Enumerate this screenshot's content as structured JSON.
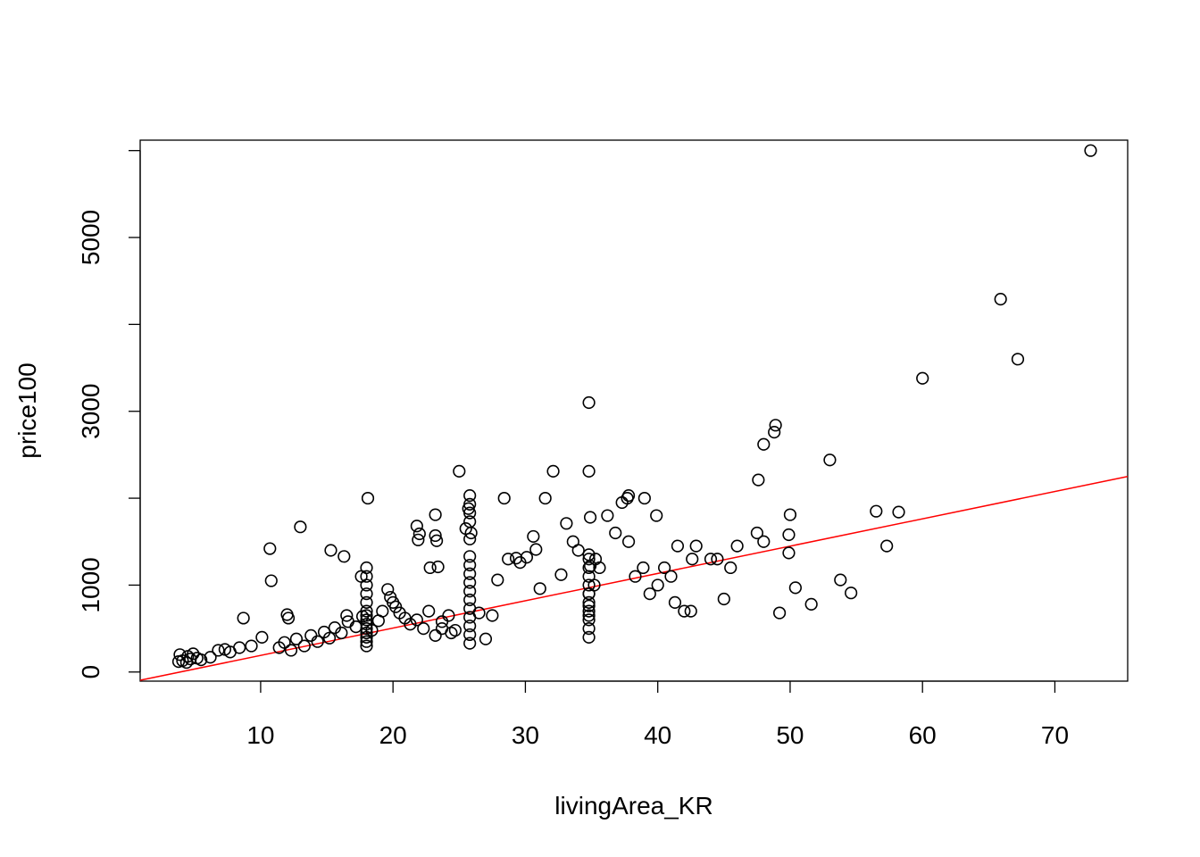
{
  "chart_data": {
    "type": "scatter",
    "title": "",
    "xlabel": "livingArea_KR",
    "ylabel": "price100",
    "xlim": [
      0.9,
      75.5
    ],
    "ylim": [
      -105,
      6120
    ],
    "xticks": [
      10,
      20,
      30,
      40,
      50,
      60,
      70
    ],
    "xtick_labels": [
      "10",
      "20",
      "30",
      "40",
      "50",
      "60",
      "70"
    ],
    "yticks": [
      0,
      1000,
      3000,
      5000
    ],
    "ytick_labels": [
      "0",
      "1000",
      "3000",
      "5000"
    ],
    "grid": false,
    "marker": "open-circle",
    "point_color": "#000000",
    "fit_line": {
      "color": "#ff0000",
      "x": [
        0.9,
        75.5
      ],
      "y": [
        -95,
        2250
      ]
    },
    "x": [
      3.8,
      4.1,
      4.4,
      4.7,
      3.9,
      4.5,
      4.9,
      5.2,
      5.5,
      6.2,
      6.8,
      7.3,
      7.7,
      8.4,
      8.7,
      9.3,
      10.1,
      10.7,
      10.8,
      12.0,
      12.1,
      13.0,
      15.3,
      16.3,
      16.5,
      17.6,
      18.1,
      11.4,
      11.8,
      12.3,
      12.7,
      13.3,
      13.8,
      14.3,
      14.8,
      15.2,
      15.6,
      16.1,
      16.6,
      17.2,
      17.7,
      18.0,
      18.0,
      18.0,
      18.0,
      18.0,
      18.0,
      18.0,
      18.0,
      18.0,
      18.0,
      18.0,
      18.0,
      18.0,
      18.0,
      18.4,
      18.9,
      19.2,
      19.6,
      19.8,
      20.0,
      20.2,
      20.5,
      20.9,
      21.3,
      21.8,
      22.3,
      22.7,
      23.2,
      23.7,
      24.2,
      24.7,
      25.8,
      25.8,
      25.8,
      25.8,
      25.8,
      25.8,
      25.8,
      25.8,
      25.8,
      25.8,
      25.8,
      25.8,
      25.8,
      25.8,
      25.8,
      25.8,
      21.8,
      21.9,
      22.0,
      22.8,
      23.2,
      23.2,
      23.3,
      23.4,
      23.7,
      24.4,
      25.0,
      25.5,
      25.7,
      25.9,
      26.5,
      27.0,
      27.5,
      27.9,
      28.4,
      28.7,
      29.3,
      29.6,
      30.1,
      30.6,
      30.8,
      31.1,
      31.5,
      32.1,
      32.7,
      33.1,
      33.6,
      34.0,
      34.8,
      34.8,
      34.8,
      34.8,
      34.8,
      34.8,
      34.8,
      34.8,
      34.8,
      34.8,
      34.8,
      34.8,
      34.8,
      34.8,
      34.8,
      34.8,
      34.9,
      34.9,
      35.3,
      35.2,
      35.6,
      36.2,
      36.8,
      37.3,
      37.8,
      38.3,
      38.9,
      39.4,
      39.9,
      40.5,
      41.0,
      41.5,
      42.0,
      42.6,
      37.7,
      37.8,
      39.0,
      40.0,
      41.3,
      42.5,
      42.9,
      44.0,
      44.5,
      45.5,
      46.0,
      47.5,
      48.0,
      47.6,
      48.0,
      48.8,
      48.9,
      49.9,
      49.9,
      50.0,
      45.0,
      49.2,
      50.4,
      51.6,
      53.0,
      53.8,
      54.6,
      56.5,
      57.3,
      58.2,
      60.0,
      65.9,
      67.2,
      72.7
    ],
    "y": [
      120,
      130,
      110,
      150,
      200,
      180,
      210,
      160,
      140,
      170,
      250,
      260,
      230,
      280,
      620,
      300,
      400,
      1420,
      1050,
      660,
      620,
      1670,
      1400,
      1330,
      650,
      1100,
      2000,
      280,
      340,
      250,
      380,
      300,
      420,
      350,
      460,
      390,
      510,
      450,
      580,
      520,
      640,
      300,
      400,
      500,
      600,
      700,
      800,
      900,
      1000,
      1100,
      1200,
      350,
      450,
      550,
      650,
      480,
      590,
      700,
      950,
      860,
      800,
      750,
      680,
      620,
      550,
      600,
      500,
      700,
      420,
      580,
      650,
      480,
      330,
      430,
      530,
      630,
      730,
      830,
      930,
      1030,
      1130,
      1230,
      1330,
      1530,
      1730,
      1830,
      1930,
      2030,
      1680,
      1520,
      1590,
      1200,
      1570,
      1810,
      1510,
      1210,
      500,
      450,
      2310,
      1650,
      1880,
      1600,
      680,
      380,
      650,
      1060,
      2000,
      1300,
      1310,
      1260,
      1320,
      1560,
      1410,
      960,
      2000,
      2310,
      1120,
      1710,
      1500,
      1400,
      400,
      500,
      600,
      700,
      800,
      900,
      1000,
      1100,
      1200,
      1300,
      2310,
      3100,
      1350,
      900,
      760,
      650,
      1220,
      1780,
      1300,
      1000,
      1200,
      1800,
      1600,
      1950,
      1500,
      1100,
      1200,
      900,
      1800,
      1200,
      1100,
      1450,
      700,
      1300,
      2000,
      2030,
      2000,
      1000,
      800,
      700,
      1450,
      1300,
      1300,
      1200,
      1450,
      1600,
      1500,
      2210,
      2620,
      2760,
      2840,
      1370,
      1580,
      1810,
      840,
      680,
      970,
      780,
      2440,
      1060,
      910,
      1850,
      1450,
      1840,
      3380,
      4290,
      3600,
      6000
    ]
  }
}
